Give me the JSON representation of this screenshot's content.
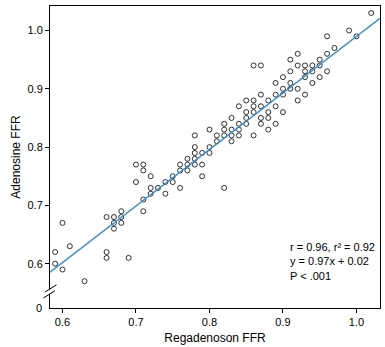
{
  "chart_data": {
    "type": "scatter",
    "x_label": "Regadenoson FFR",
    "y_label": "Adenosine FFR",
    "xlim": [
      0.583,
      1.032
    ],
    "ylim": [
      0.524,
      1.042
    ],
    "xticks": [
      {
        "value": 0.6,
        "label": "0.6"
      },
      {
        "value": 0.7,
        "label": "0.7"
      },
      {
        "value": 0.8,
        "label": "0.8"
      },
      {
        "value": 0.9,
        "label": "0.9"
      },
      {
        "value": 1.0,
        "label": "1.0"
      }
    ],
    "yticks": [
      {
        "value": 0.6,
        "label": "0.6"
      },
      {
        "value": 0.7,
        "label": "0.7"
      },
      {
        "value": 0.8,
        "label": "0.8"
      },
      {
        "value": 0.9,
        "label": "0.9"
      },
      {
        "value": 1.0,
        "label": "1.0"
      }
    ],
    "y_break_label": "0",
    "grid": false,
    "marker": "open-circle",
    "color": "#000000",
    "x": [
      0.59,
      0.59,
      0.6,
      0.6,
      0.61,
      0.63,
      0.66,
      0.66,
      0.66,
      0.67,
      0.67,
      0.67,
      0.68,
      0.68,
      0.69,
      0.68,
      0.7,
      0.7,
      0.71,
      0.71,
      0.71,
      0.72,
      0.72,
      0.72,
      0.71,
      0.73,
      0.74,
      0.74,
      0.75,
      0.75,
      0.76,
      0.76,
      0.76,
      0.77,
      0.77,
      0.77,
      0.78,
      0.78,
      0.78,
      0.78,
      0.78,
      0.79,
      0.79,
      0.79,
      0.8,
      0.8,
      0.81,
      0.81,
      0.82,
      0.82,
      0.82,
      0.83,
      0.83,
      0.83,
      0.84,
      0.84,
      0.84,
      0.85,
      0.85,
      0.85,
      0.85,
      0.86,
      0.86,
      0.86,
      0.86,
      0.86,
      0.87,
      0.87,
      0.87,
      0.87,
      0.88,
      0.88,
      0.88,
      0.88,
      0.89,
      0.89,
      0.89,
      0.89,
      0.9,
      0.9,
      0.9,
      0.9,
      0.91,
      0.91,
      0.91,
      0.91,
      0.92,
      0.92,
      0.92,
      0.92,
      0.93,
      0.93,
      0.93,
      0.93,
      0.94,
      0.94,
      0.94,
      0.95,
      0.95,
      0.95,
      0.96,
      0.96,
      0.96,
      0.97,
      0.99,
      1.0,
      1.02,
      0.84,
      0.82,
      0.8,
      0.83,
      0.87
    ],
    "values": [
      0.6,
      0.62,
      0.67,
      0.59,
      0.63,
      0.57,
      0.61,
      0.62,
      0.68,
      0.66,
      0.67,
      0.68,
      0.67,
      0.69,
      0.61,
      0.68,
      0.74,
      0.77,
      0.77,
      0.76,
      0.69,
      0.72,
      0.73,
      0.75,
      0.71,
      0.73,
      0.74,
      0.72,
      0.74,
      0.75,
      0.76,
      0.77,
      0.73,
      0.77,
      0.78,
      0.76,
      0.79,
      0.78,
      0.8,
      0.82,
      0.77,
      0.79,
      0.77,
      0.75,
      0.83,
      0.79,
      0.82,
      0.81,
      0.73,
      0.83,
      0.84,
      0.82,
      0.81,
      0.85,
      0.87,
      0.83,
      0.82,
      0.86,
      0.84,
      0.88,
      0.85,
      0.94,
      0.87,
      0.88,
      0.86,
      0.82,
      0.94,
      0.89,
      0.87,
      0.85,
      0.86,
      0.88,
      0.85,
      0.83,
      0.84,
      0.89,
      0.87,
      0.91,
      0.9,
      0.89,
      0.92,
      0.86,
      0.95,
      0.91,
      0.9,
      0.93,
      0.88,
      0.9,
      0.94,
      0.96,
      0.93,
      0.92,
      0.94,
      0.89,
      0.93,
      0.91,
      0.94,
      0.92,
      0.94,
      0.95,
      0.96,
      0.99,
      0.93,
      0.97,
      1.0,
      0.99,
      1.03,
      0.84,
      0.82,
      0.8,
      0.83,
      0.84
    ],
    "fit": {
      "slope": 0.97,
      "intercept": 0.02,
      "color": "#3b8fcb"
    },
    "annotations": [
      "r = 0.96, r² = 0.92",
      "y = 0.97x + 0.02",
      "P < .001"
    ]
  }
}
